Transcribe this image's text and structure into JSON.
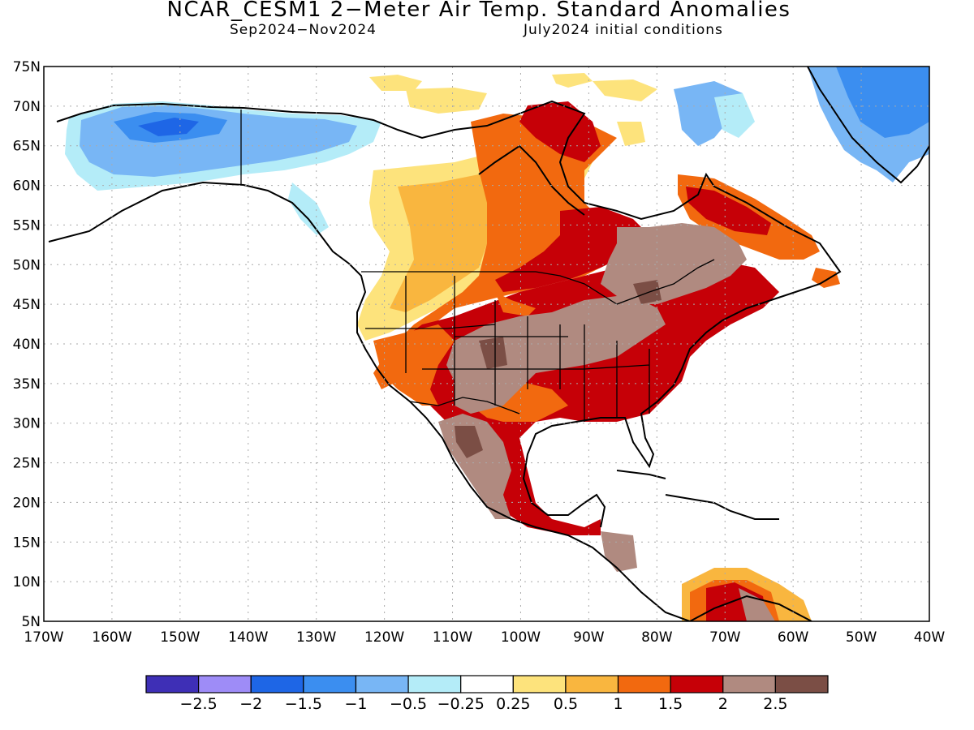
{
  "header": {
    "title": "NCAR_CESM1 2−Meter Air Temp. Standard Anomalies",
    "subtitle_left": "Sep2024−Nov2024",
    "subtitle_right": "July2024 initial conditions"
  },
  "map": {
    "lat_labels": [
      "75N",
      "70N",
      "65N",
      "60N",
      "55N",
      "50N",
      "45N",
      "40N",
      "35N",
      "30N",
      "25N",
      "20N",
      "15N",
      "10N",
      "5N"
    ],
    "lon_labels": [
      "170W",
      "160W",
      "150W",
      "140W",
      "130W",
      "120W",
      "110W",
      "100W",
      "90W",
      "80W",
      "70W",
      "60W",
      "50W",
      "40W"
    ],
    "lat_range": [
      5,
      75
    ],
    "lon_range": [
      -170,
      -40
    ],
    "grid": "dotted"
  },
  "colorbar": {
    "colors": [
      "#3e2fb6",
      "#9e8cf7",
      "#1e66e6",
      "#3b8ef0",
      "#78b6f5",
      "#b4ecf8",
      "#ffffff",
      "#fde37c",
      "#f9b63f",
      "#f2690f",
      "#c60007",
      "#b08a80",
      "#7b4e45"
    ],
    "labels": [
      "−2.5",
      "−2",
      "−1.5",
      "−1",
      "−0.5",
      "−0.25",
      "0.25",
      "0.5",
      "1",
      "1.5",
      "2",
      "2.5"
    ]
  }
}
